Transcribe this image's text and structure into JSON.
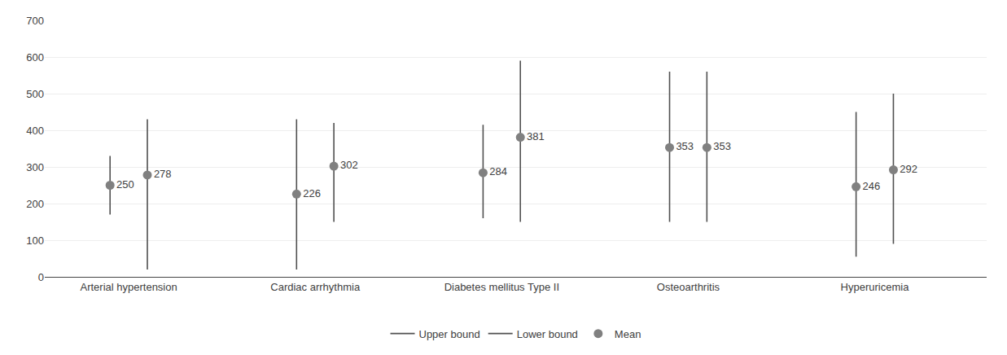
{
  "chart_data": {
    "type": "range_dot",
    "categories": [
      "Arterial hypertension",
      "Cardiac arrhythmia",
      "Diabetes mellitus Type II",
      "Osteoarthritis",
      "Hyperuricemia"
    ],
    "series": [
      {
        "name": "Upper bound",
        "color": "#505050",
        "line_style": "solid",
        "values": [
          [
            330,
            430
          ],
          [
            430,
            420
          ],
          [
            415,
            590
          ],
          [
            560,
            560
          ],
          [
            450,
            500
          ]
        ]
      },
      {
        "name": "Lower bound",
        "color": "#505050",
        "line_style": "solid",
        "values": [
          [
            170,
            20
          ],
          [
            20,
            150
          ],
          [
            160,
            150
          ],
          [
            150,
            150
          ],
          [
            55,
            90
          ]
        ]
      },
      {
        "name": "Mean",
        "color": "#808080",
        "marker": "circle",
        "values": [
          [
            250,
            278
          ],
          [
            226,
            302
          ],
          [
            284,
            381
          ],
          [
            353,
            353
          ],
          [
            246,
            292
          ]
        ]
      }
    ],
    "data_labels": true,
    "ylim": [
      0,
      700
    ],
    "yticks": [
      0,
      100,
      200,
      300,
      400,
      500,
      600,
      700
    ],
    "grid": true,
    "legend": "bottom"
  }
}
